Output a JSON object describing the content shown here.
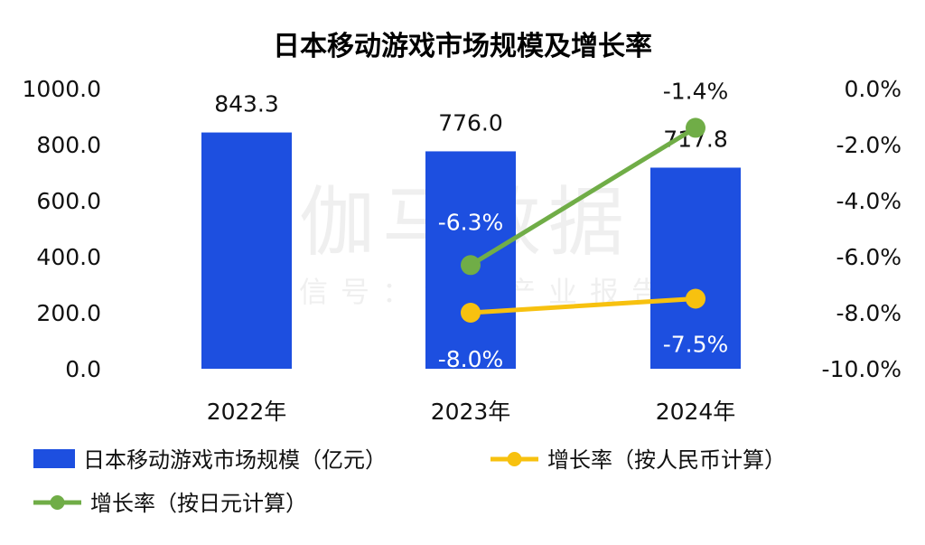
{
  "chart_data": {
    "type": "bar",
    "title": "日本移动游戏市场规模及增长率",
    "categories": [
      "2022年",
      "2023年",
      "2024年"
    ],
    "bar_series": {
      "name": "日本移动游戏市场规模（亿元）",
      "values": [
        843.3,
        776.0,
        717.8
      ],
      "labels": [
        "843.3",
        "776.0",
        "717.8"
      ],
      "color": "#1d4fe0"
    },
    "line_series": [
      {
        "name": "增长率（按人民币计算）",
        "x": [
          "2023年",
          "2024年"
        ],
        "values": [
          -8.0,
          -7.5
        ],
        "labels": [
          "-8.0%",
          "-7.5%"
        ],
        "color": "#f7c10f"
      },
      {
        "name": "增长率（按日元计算）",
        "x": [
          "2023年",
          "2024年"
        ],
        "values": [
          -6.3,
          -1.4
        ],
        "labels": [
          "-6.3%",
          "-1.4%"
        ],
        "color": "#70ad47"
      }
    ],
    "y_left": {
      "ticks": [
        "0.0",
        "200.0",
        "400.0",
        "600.0",
        "800.0",
        "1000.0"
      ],
      "ylim": [
        0,
        1000
      ]
    },
    "y_right": {
      "ticks": [
        "-10.0%",
        "-8.0%",
        "-6.0%",
        "-4.0%",
        "-2.0%",
        "0.0%"
      ],
      "ylim": [
        -10,
        0
      ]
    },
    "grid": false,
    "legend_position": "bottom",
    "watermark": {
      "main": "伽马数据",
      "sub": "微信号：游戏产业报告"
    }
  }
}
